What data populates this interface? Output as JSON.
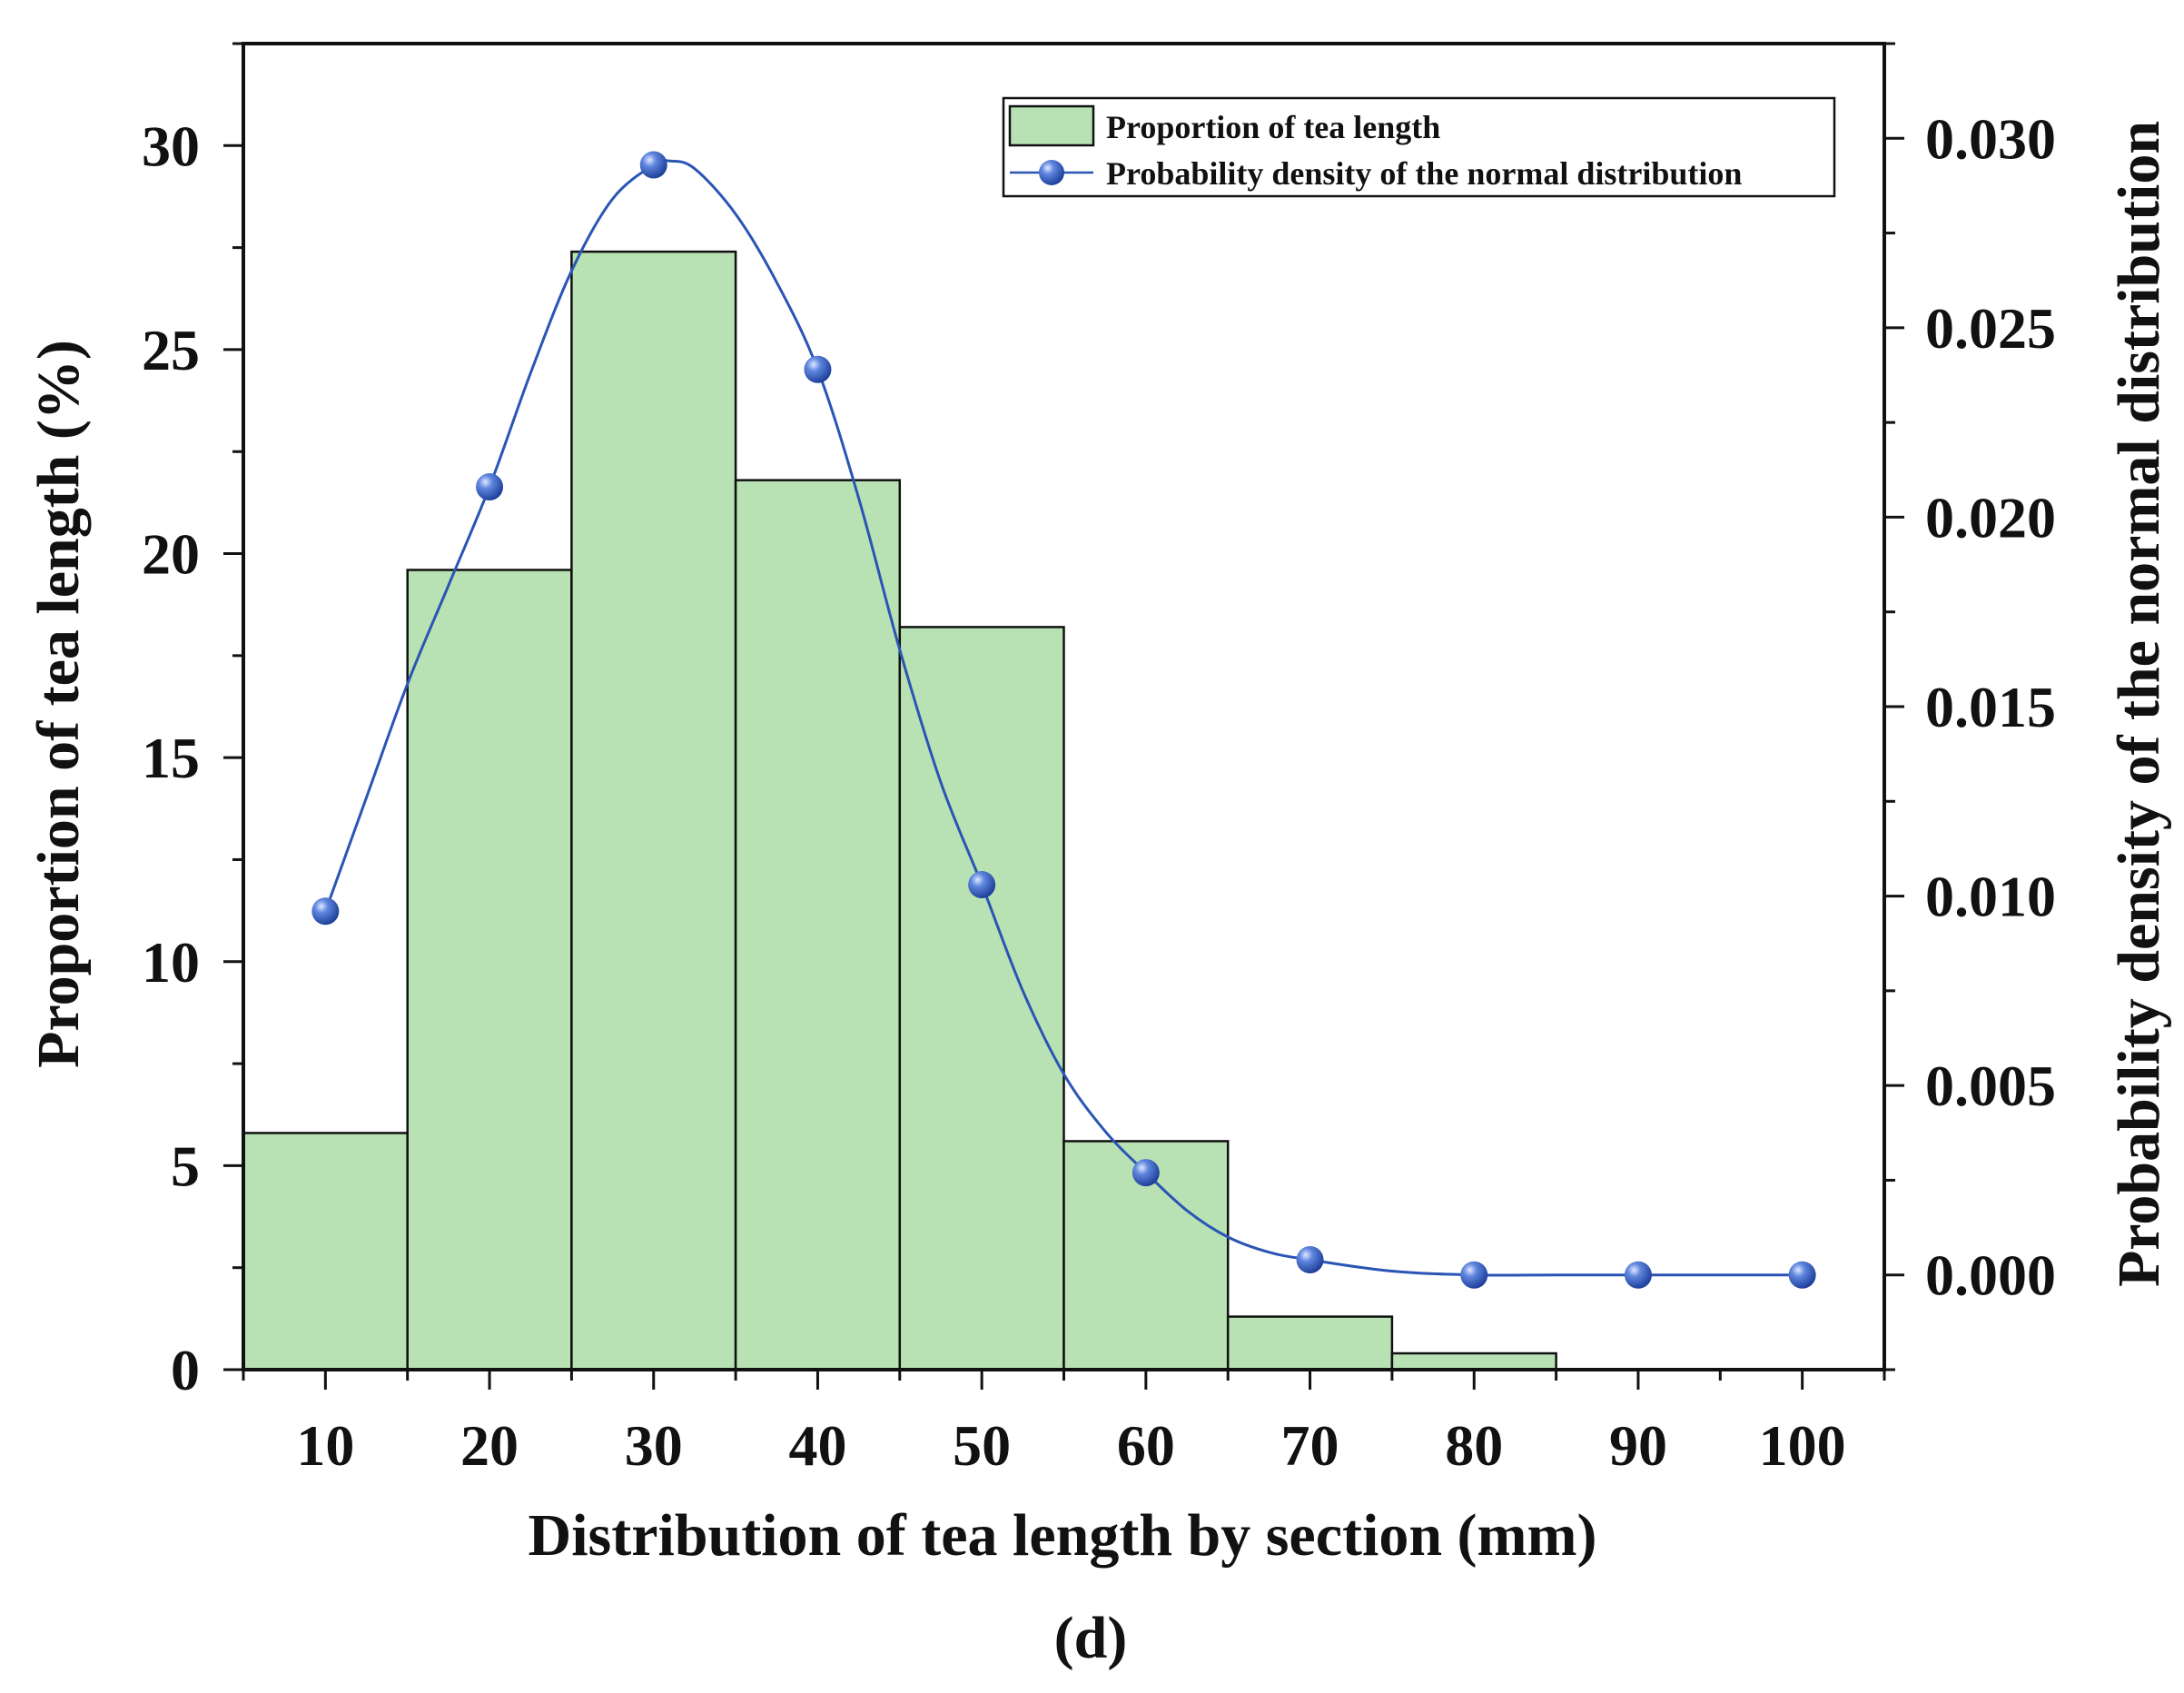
{
  "chart_data": {
    "type": "bar",
    "panel_label": "(d)",
    "xlabel": "Distribution of tea length by section (mm)",
    "ylabel_left": "Proportion of tea length (%)",
    "ylabel_right": "Probability density of the normal distribution",
    "x_ticks": [
      10,
      20,
      30,
      40,
      50,
      60,
      70,
      80,
      90,
      100
    ],
    "x_tick_labels": [
      "10",
      "20",
      "30",
      "40",
      "50",
      "60",
      "70",
      "80",
      "90",
      "100"
    ],
    "xlim": [
      5,
      105
    ],
    "ylim_left": [
      0,
      32.5
    ],
    "y_ticks_left": [
      0,
      5,
      10,
      15,
      20,
      25,
      30
    ],
    "y_tick_labels_left": [
      "0",
      "5",
      "10",
      "15",
      "20",
      "25",
      "30"
    ],
    "ylim_right": [
      -0.0025,
      0.0325
    ],
    "y_ticks_right": [
      0.0,
      0.005,
      0.01,
      0.015,
      0.02,
      0.025,
      0.03
    ],
    "y_tick_labels_right": [
      "0.000",
      "0.005",
      "0.010",
      "0.015",
      "0.020",
      "0.025",
      "0.030"
    ],
    "legend": {
      "position": "top-right",
      "entries": [
        "Proportion of tea length",
        "Probability density of the normal distribution"
      ]
    },
    "series": [
      {
        "name": "Proportion of tea length",
        "type": "bar",
        "axis": "left",
        "color": "#b9e2b4",
        "edge_color": "#111111",
        "x": [
          10,
          20,
          30,
          40,
          50,
          60,
          70,
          80
        ],
        "bin_width": 10,
        "values": [
          5.8,
          19.6,
          27.4,
          21.8,
          18.2,
          5.6,
          1.3,
          0.4
        ]
      },
      {
        "name": "Probability density of the normal distribution",
        "type": "line",
        "axis": "right",
        "color": "#2a55b5",
        "marker_color": "#2b50b0",
        "x": [
          10,
          20,
          30,
          40,
          50,
          60,
          70,
          80,
          90,
          100
        ],
        "values": [
          0.0096,
          0.0208,
          0.0293,
          0.0239,
          0.0103,
          0.0027,
          0.0004,
          0.0,
          0.0,
          0.0
        ],
        "curve_x": [
          10,
          12.5,
          15,
          17.5,
          20,
          22.5,
          25,
          27.5,
          30,
          31,
          32.5,
          35,
          37.5,
          40,
          42.5,
          45,
          47.5,
          50,
          52.5,
          55,
          57.5,
          60,
          62.5,
          65,
          67.5,
          70,
          75,
          80,
          85,
          90,
          95,
          100
        ],
        "curve_y": [
          0.0096,
          0.0126,
          0.0156,
          0.0182,
          0.0208,
          0.0238,
          0.0265,
          0.0284,
          0.0293,
          0.0294,
          0.0292,
          0.028,
          0.0262,
          0.0239,
          0.0205,
          0.0165,
          0.013,
          0.0103,
          0.0075,
          0.0053,
          0.0038,
          0.0027,
          0.0017,
          0.001,
          0.0006,
          0.0004,
          0.0001,
          0.0,
          0.0,
          0.0,
          0.0,
          0.0
        ]
      }
    ]
  }
}
